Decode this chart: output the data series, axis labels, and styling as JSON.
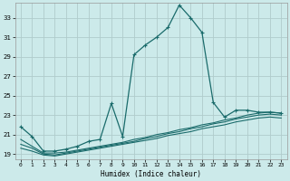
{
  "xlabel": "Humidex (Indice chaleur)",
  "bg_color": "#cceaea",
  "grid_color": "#b0cccc",
  "line_color": "#1a6b6b",
  "xlim": [
    -0.5,
    23.5
  ],
  "ylim": [
    18.5,
    34.5
  ],
  "xticks": [
    0,
    1,
    2,
    3,
    4,
    5,
    6,
    7,
    8,
    9,
    10,
    11,
    12,
    13,
    14,
    15,
    16,
    17,
    18,
    19,
    20,
    21,
    22,
    23
  ],
  "yticks": [
    19,
    21,
    23,
    25,
    27,
    29,
    31,
    33
  ],
  "series1_x": [
    0,
    1,
    2,
    3,
    4,
    5,
    6,
    7,
    8,
    9,
    10,
    11,
    12,
    13,
    14,
    15,
    16,
    17,
    18,
    19,
    20,
    21,
    22,
    23
  ],
  "series1_y": [
    21.8,
    20.8,
    19.3,
    19.3,
    19.5,
    19.8,
    20.3,
    20.5,
    24.2,
    20.8,
    29.2,
    30.2,
    31.0,
    32.0,
    34.3,
    33.0,
    31.5,
    24.3,
    22.8,
    23.5,
    23.5,
    23.3,
    23.3,
    23.2
  ],
  "series2_x": [
    0,
    1,
    2,
    3,
    4,
    5,
    6,
    7,
    8,
    9,
    10,
    11,
    12,
    13,
    14,
    15,
    16,
    17,
    18,
    19,
    20,
    21,
    22,
    23
  ],
  "series2_y": [
    20.5,
    19.8,
    19.1,
    19.1,
    19.2,
    19.4,
    19.6,
    19.8,
    20.0,
    20.2,
    20.5,
    20.7,
    21.0,
    21.2,
    21.5,
    21.7,
    22.0,
    22.2,
    22.5,
    22.7,
    23.0,
    23.2,
    23.3,
    23.2
  ],
  "series3_x": [
    0,
    1,
    2,
    3,
    4,
    5,
    6,
    7,
    8,
    9,
    10,
    11,
    12,
    13,
    14,
    15,
    16,
    17,
    18,
    19,
    20,
    21,
    22,
    23
  ],
  "series3_y": [
    20.0,
    19.6,
    19.0,
    18.9,
    19.1,
    19.3,
    19.5,
    19.7,
    19.9,
    20.1,
    20.3,
    20.6,
    20.8,
    21.1,
    21.3,
    21.6,
    21.8,
    22.1,
    22.3,
    22.6,
    22.8,
    23.0,
    23.1,
    23.0
  ],
  "series4_x": [
    0,
    1,
    2,
    3,
    4,
    5,
    6,
    7,
    8,
    9,
    10,
    11,
    12,
    13,
    14,
    15,
    16,
    17,
    18,
    19,
    20,
    21,
    22,
    23
  ],
  "series4_y": [
    19.6,
    19.3,
    18.9,
    18.8,
    19.0,
    19.2,
    19.4,
    19.6,
    19.8,
    20.0,
    20.2,
    20.4,
    20.6,
    20.9,
    21.1,
    21.3,
    21.6,
    21.8,
    22.0,
    22.3,
    22.5,
    22.7,
    22.8,
    22.7
  ]
}
